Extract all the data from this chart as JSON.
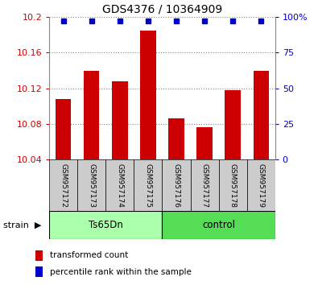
{
  "title": "GDS4376 / 10364909",
  "samples": [
    "GSM957172",
    "GSM957173",
    "GSM957174",
    "GSM957175",
    "GSM957176",
    "GSM957177",
    "GSM957178",
    "GSM957179"
  ],
  "bar_values": [
    10.108,
    10.14,
    10.128,
    10.185,
    10.086,
    10.076,
    10.118,
    10.14
  ],
  "ymin": 10.04,
  "ymax": 10.2,
  "yticks": [
    10.04,
    10.08,
    10.12,
    10.16,
    10.2
  ],
  "ytick_labels": [
    "10.04",
    "10.08",
    "10.12",
    "10.16",
    "10.2"
  ],
  "right_yticks": [
    0,
    25,
    50,
    75,
    100
  ],
  "right_ytick_labels": [
    "0",
    "25",
    "50",
    "75",
    "100%"
  ],
  "bar_color": "#cc0000",
  "dot_color": "#0000cc",
  "bar_baseline": 10.04,
  "ts_color": "#aaffaa",
  "ctrl_color": "#55dd55",
  "sample_box_color": "#cccccc",
  "background_color": "#ffffff",
  "title_fontsize": 10,
  "axis_fontsize": 8,
  "sample_fontsize": 6.5,
  "group_fontsize": 8.5,
  "legend_fontsize": 7.5
}
